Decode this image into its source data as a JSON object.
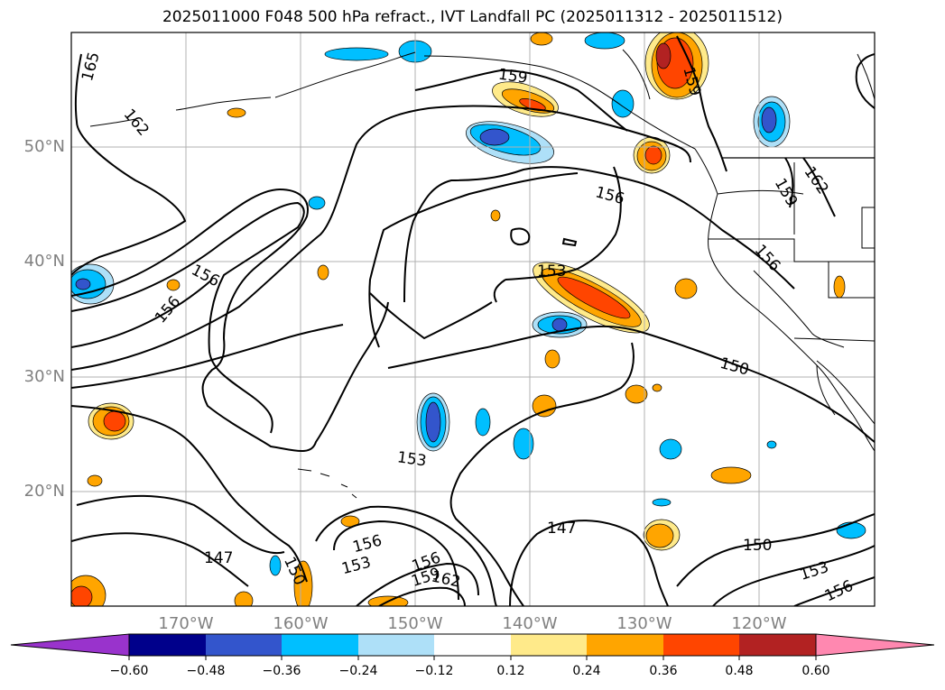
{
  "title": "2025011000 F048 500 hPa refract., IVT Landfall PC (2025011312 - 2025011512)",
  "lat_labels": [
    "50°N",
    "40°N",
    "30°N",
    "20°N"
  ],
  "lon_labels": [
    "170°W",
    "160°W",
    "150°W",
    "140°W",
    "130°W",
    "120°W"
  ],
  "contour_labels": [
    "165",
    "162",
    "159",
    "159",
    "156",
    "162",
    "159",
    "156",
    "156",
    "156",
    "153",
    "150",
    "153",
    "147",
    "147",
    "150",
    "156",
    "153",
    "156",
    "159",
    "162",
    "150",
    "153",
    "156"
  ],
  "colorbar": {
    "labels": [
      "−0.60",
      "−0.48",
      "−0.36",
      "−0.24",
      "−0.12",
      "0.12",
      "0.24",
      "0.36",
      "0.48",
      "0.60"
    ],
    "colors": [
      "#9933cc",
      "#00008b",
      "#3355cc",
      "#00bfff",
      "#aee0f8",
      "#ffffff",
      "#ffea8a",
      "#ffa500",
      "#ff4500",
      "#b22222",
      "#ff88b0"
    ]
  }
}
